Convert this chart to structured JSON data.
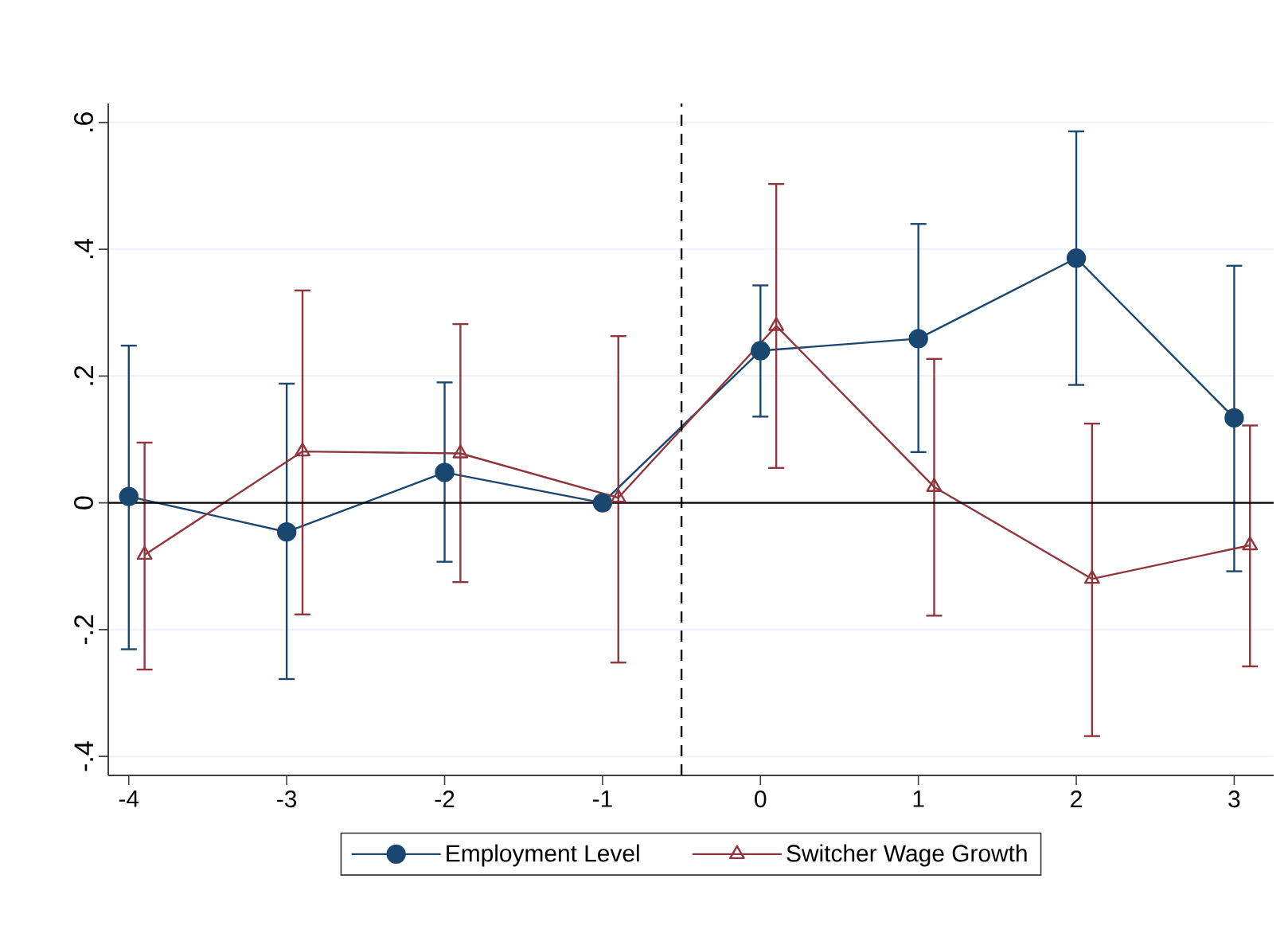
{
  "chart_data": {
    "type": "line",
    "xlim": [
      -4.13,
      3.25
    ],
    "ylim": [
      -0.43,
      0.63
    ],
    "xticks": [
      -4,
      -3,
      -2,
      -1,
      0,
      1,
      2,
      3
    ],
    "yticks": [
      {
        "value": -0.4,
        "label": "-.4"
      },
      {
        "value": -0.2,
        "label": "-.2"
      },
      {
        "value": 0,
        "label": "0"
      },
      {
        "value": 0.2,
        "label": ".2"
      },
      {
        "value": 0.4,
        "label": ".4"
      },
      {
        "value": 0.6,
        "label": ".6"
      }
    ],
    "grid": "y",
    "legend": "bottom",
    "line_style": "solid",
    "ref_lines": [
      {
        "axis": "x",
        "value": -0.5,
        "line_style": "dashed",
        "color": "#000000"
      },
      {
        "axis": "y",
        "value": 0,
        "line_style": "solid",
        "color": "#000000"
      }
    ],
    "series": [
      {
        "name": "Employment Level",
        "color": "#1a476f",
        "marker": "circle",
        "x": [
          -4,
          -3,
          -2,
          -1,
          0,
          1,
          2,
          3
        ],
        "values": [
          0.01,
          -0.046,
          0.048,
          0.0,
          0.24,
          0.259,
          0.386,
          0.134
        ],
        "errors": [
          [
            -0.231,
            0.248
          ],
          [
            -0.278,
            0.188
          ],
          [
            -0.093,
            0.19
          ],
          null,
          [
            0.136,
            0.343
          ],
          [
            0.08,
            0.44
          ],
          [
            0.186,
            0.586
          ],
          [
            -0.108,
            0.374
          ]
        ]
      },
      {
        "name": "Switcher Wage Growth",
        "color": "#90353b",
        "marker": "triangle",
        "x": [
          -3.9,
          -2.9,
          -1.9,
          -0.9,
          0.1,
          1.1,
          2.1,
          3.1
        ],
        "values": [
          -0.082,
          0.081,
          0.078,
          0.008,
          0.279,
          0.025,
          -0.12,
          -0.067
        ],
        "errors": [
          [
            -0.263,
            0.095
          ],
          [
            -0.176,
            0.335
          ],
          [
            -0.125,
            0.282
          ],
          [
            -0.252,
            0.263
          ],
          [
            0.055,
            0.503
          ],
          [
            -0.178,
            0.227
          ],
          [
            -0.368,
            0.125
          ],
          [
            -0.258,
            0.122
          ]
        ]
      }
    ]
  }
}
